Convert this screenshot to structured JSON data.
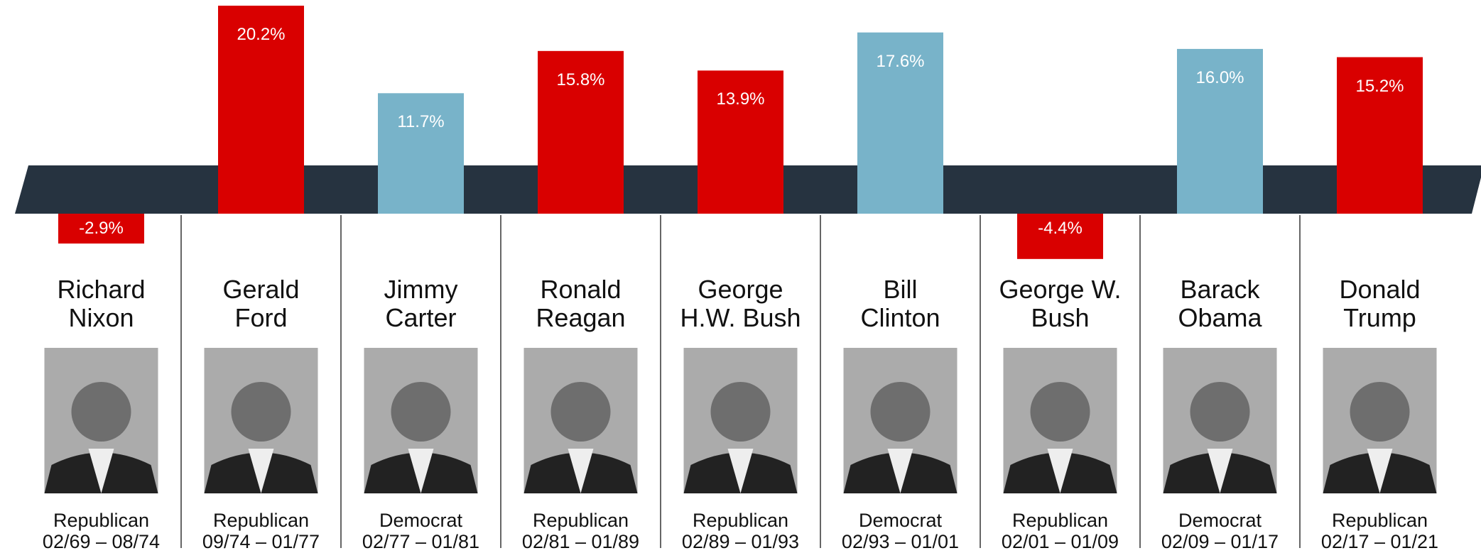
{
  "chart_data": {
    "type": "bar",
    "categories": [
      "Richard\nNixon",
      "Gerald\nFord",
      "Jimmy\nCarter",
      "Ronald\nReagan",
      "George\nH.W. Bush",
      "Bill\nClinton",
      "George W.\nBush",
      "Barack\nObama",
      "Donald\nTrump"
    ],
    "values": [
      -2.9,
      20.2,
      11.7,
      15.8,
      13.9,
      17.6,
      -4.4,
      16.0,
      15.2
    ],
    "value_labels": [
      "-2.9%",
      "20.2%",
      "11.7%",
      "15.8%",
      "13.9%",
      "17.6%",
      "-4.4%",
      "16.0%",
      "15.2%"
    ],
    "colors": [
      "#d90000",
      "#d90000",
      "#78b3c9",
      "#d90000",
      "#d90000",
      "#78b3c9",
      "#d90000",
      "#78b3c9",
      "#d90000"
    ],
    "parties": [
      "Republican",
      "Republican",
      "Democrat",
      "Republican",
      "Republican",
      "Democrat",
      "Republican",
      "Democrat",
      "Republican"
    ],
    "terms": [
      "02/69 – 08/74",
      "09/74 – 01/77",
      "02/77 – 01/81",
      "02/81 – 01/89",
      "02/89 – 01/93",
      "02/93 – 01/01",
      "02/01 – 01/09",
      "02/09 – 01/17",
      "02/17 – 01/21"
    ]
  }
}
